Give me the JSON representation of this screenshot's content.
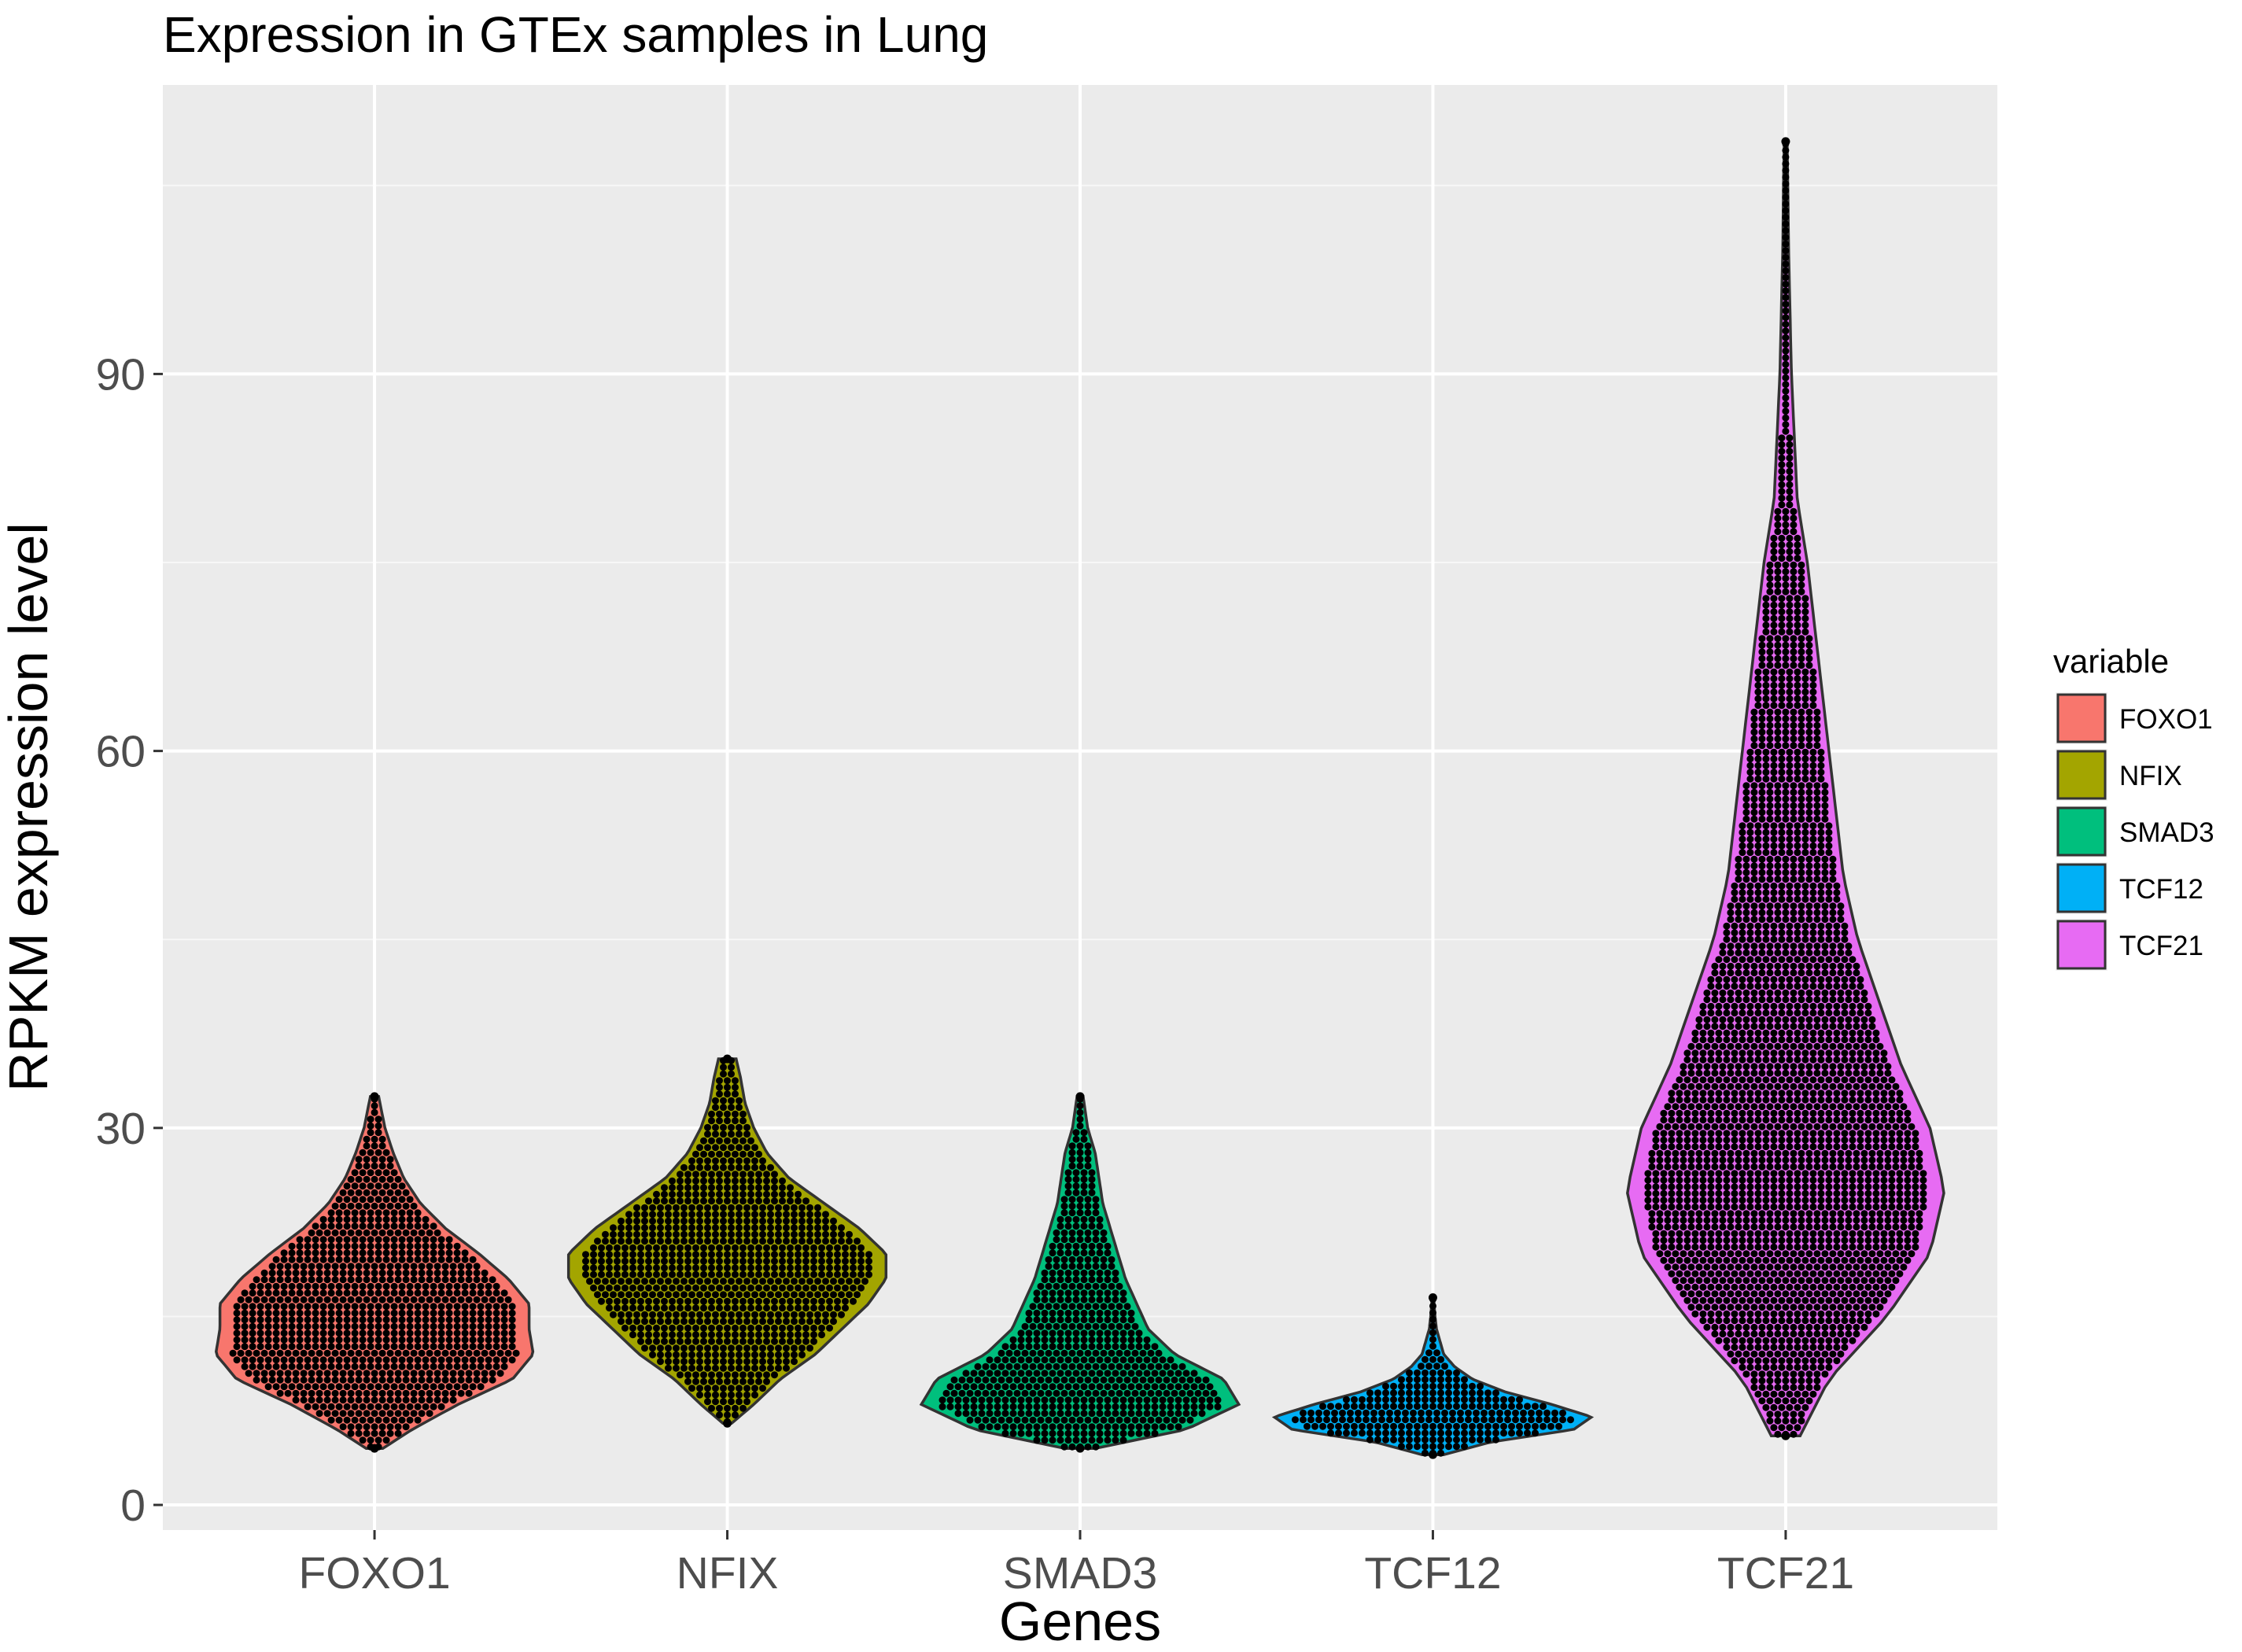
{
  "chart_data": {
    "type": "violin",
    "title": "Expression in GTEx samples in Lung",
    "xlabel": "Genes",
    "ylabel": "RPKM expression level",
    "ylim": [
      -2,
      113
    ],
    "yticks": [
      0,
      30,
      60,
      90
    ],
    "grid": true,
    "legend": {
      "title": "variable",
      "placement": "right"
    },
    "categories": [
      "FOXO1",
      "NFIX",
      "SMAD3",
      "TCF12",
      "TCF21"
    ],
    "series": [
      {
        "name": "FOXO1",
        "color": "#F8766D",
        "min": 4.5,
        "max": 32.5,
        "median": 13,
        "density": [
          [
            4.5,
            0.02
          ],
          [
            6,
            0.09
          ],
          [
            8,
            0.2
          ],
          [
            10,
            0.33
          ],
          [
            12,
            0.38
          ],
          [
            14,
            0.37
          ],
          [
            16,
            0.37
          ],
          [
            18,
            0.32
          ],
          [
            20,
            0.25
          ],
          [
            22,
            0.17
          ],
          [
            24,
            0.11
          ],
          [
            26,
            0.07
          ],
          [
            28,
            0.045
          ],
          [
            30,
            0.025
          ],
          [
            32.5,
            0.01
          ]
        ]
      },
      {
        "name": "NFIX",
        "color": "#A3A500",
        "min": 6.5,
        "max": 35.5,
        "median": 18.5,
        "density": [
          [
            6.5,
            0.01
          ],
          [
            8,
            0.06
          ],
          [
            10,
            0.12
          ],
          [
            12,
            0.2
          ],
          [
            14,
            0.26
          ],
          [
            16,
            0.32
          ],
          [
            18,
            0.36
          ],
          [
            20,
            0.36
          ],
          [
            22,
            0.3
          ],
          [
            24,
            0.22
          ],
          [
            26,
            0.14
          ],
          [
            28,
            0.09
          ],
          [
            30,
            0.06
          ],
          [
            32,
            0.04
          ],
          [
            34,
            0.03
          ],
          [
            35.5,
            0.02
          ]
        ]
      },
      {
        "name": "SMAD3",
        "color": "#00BF7D",
        "min": 4.5,
        "max": 32.5,
        "median": 9,
        "density": [
          [
            4.5,
            0.04
          ],
          [
            6,
            0.28
          ],
          [
            8,
            0.42
          ],
          [
            10,
            0.38
          ],
          [
            12,
            0.25
          ],
          [
            14,
            0.18
          ],
          [
            16,
            0.15
          ],
          [
            18,
            0.12
          ],
          [
            20,
            0.1
          ],
          [
            22,
            0.08
          ],
          [
            24,
            0.06
          ],
          [
            26,
            0.05
          ],
          [
            28,
            0.04
          ],
          [
            30,
            0.02
          ],
          [
            32.5,
            0.008
          ]
        ]
      },
      {
        "name": "TCF12",
        "color": "#00B0F6",
        "min": 4,
        "max": 16.5,
        "median": 7,
        "density": [
          [
            4,
            0.06
          ],
          [
            5,
            0.32
          ],
          [
            6,
            0.78
          ],
          [
            7,
            0.88
          ],
          [
            8,
            0.66
          ],
          [
            9,
            0.4
          ],
          [
            10,
            0.22
          ],
          [
            11,
            0.12
          ],
          [
            12,
            0.06
          ],
          [
            13,
            0.04
          ],
          [
            14,
            0.02
          ],
          [
            15,
            0.012
          ],
          [
            16.5,
            0.004
          ]
        ]
      },
      {
        "name": "TCF21",
        "color": "#E76BF3",
        "min": 5.5,
        "max": 108.5,
        "median": 26,
        "density": [
          [
            5.5,
            0.01
          ],
          [
            10,
            0.03
          ],
          [
            15,
            0.07
          ],
          [
            20,
            0.1
          ],
          [
            25,
            0.11
          ],
          [
            30,
            0.1
          ],
          [
            35,
            0.08
          ],
          [
            40,
            0.065
          ],
          [
            45,
            0.05
          ],
          [
            50,
            0.04
          ],
          [
            55,
            0.035
          ],
          [
            60,
            0.03
          ],
          [
            65,
            0.025
          ],
          [
            70,
            0.02
          ],
          [
            75,
            0.015
          ],
          [
            80,
            0.008
          ],
          [
            85,
            0.006
          ],
          [
            90,
            0.004
          ],
          [
            95,
            0.003
          ],
          [
            100,
            0.002
          ],
          [
            105,
            0.0015
          ],
          [
            108.5,
            0.001
          ]
        ]
      }
    ]
  },
  "colors": {
    "panel_background": "#EBEBEB",
    "grid_major": "#FFFFFF",
    "violin_outline": "#333333",
    "dots": "#000000",
    "axis_text": "#4D4D4D",
    "title_text": "#000000"
  }
}
